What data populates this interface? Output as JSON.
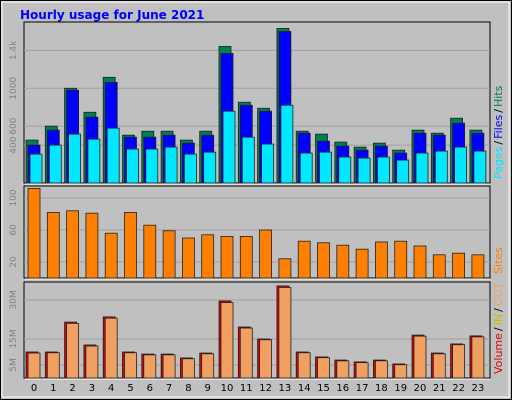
{
  "title": "Hourly usage for June 2021",
  "chart_data": [
    {
      "type": "bar",
      "ylim": [
        0,
        1700
      ],
      "yticks": [
        400,
        600,
        1000,
        {
          "value": 1400,
          "label": "1.4k"
        }
      ],
      "grid": true,
      "legend_separator": "/",
      "series": [
        {
          "name": "Pages",
          "color": "#00e8ff",
          "values": [
            305,
            400,
            516,
            463,
            579,
            358,
            358,
            379,
            305,
            326,
            758,
            484,
            411,
            821,
            316,
            326,
            274,
            263,
            274,
            242,
            316,
            337,
            379,
            337
          ]
        },
        {
          "name": "Files",
          "color": "#0000ff",
          "values": [
            400,
            558,
            979,
            695,
            1063,
            484,
            484,
            505,
            421,
            505,
            1368,
            821,
            758,
            1600,
            526,
            442,
            389,
            347,
            389,
            316,
            526,
            505,
            632,
            526
          ]
        },
        {
          "name": "Hits",
          "color": "#008050",
          "values": [
            453,
            600,
            1000,
            747,
            1116,
            505,
            547,
            547,
            453,
            547,
            1442,
            853,
            789,
            1632,
            547,
            516,
            432,
            379,
            421,
            347,
            558,
            526,
            684,
            558
          ]
        }
      ]
    },
    {
      "type": "bar",
      "ylim": [
        0,
        115
      ],
      "yticks": [
        20,
        60,
        100
      ],
      "grid": true,
      "legend_separator": "/",
      "series": [
        {
          "name": "Sites",
          "color": "#ff8000",
          "values": [
            112,
            82,
            84,
            81,
            56,
            82,
            66,
            59,
            50,
            54,
            52,
            52,
            60,
            24,
            46,
            44,
            41,
            36,
            45,
            46,
            40,
            29,
            31,
            29
          ]
        }
      ]
    },
    {
      "type": "bar",
      "ylim": [
        0,
        36.9
      ],
      "yticks": [
        {
          "value": 5,
          "label": "5M"
        },
        {
          "value": 15,
          "label": "15M"
        },
        {
          "value": 30,
          "label": "30M"
        }
      ],
      "grid": true,
      "legend_separator": "/",
      "categories": [
        "0",
        "1",
        "2",
        "3",
        "4",
        "5",
        "6",
        "7",
        "8",
        "9",
        "10",
        "11",
        "12",
        "13",
        "14",
        "15",
        "16",
        "17",
        "18",
        "19",
        "20",
        "21",
        "22",
        "23"
      ],
      "series": [
        {
          "name": "Volume",
          "color": "#e00000",
          "values": [
            10,
            10,
            21.5,
            12.7,
            23.5,
            10,
            9.2,
            9.2,
            7.7,
            9.6,
            29.6,
            19.6,
            15,
            35.4,
            10,
            8.1,
            6.9,
            6.2,
            6.9,
            5.4,
            16.5,
            9.6,
            13.1,
            16.2
          ]
        },
        {
          "name": "IN",
          "color": "#c8c000",
          "values": [
            0,
            0,
            0,
            0,
            0,
            0,
            0,
            0,
            0,
            0,
            0,
            0,
            0,
            0,
            0,
            0,
            0,
            0,
            0,
            0,
            0,
            0,
            0,
            0
          ]
        },
        {
          "name": "OUT",
          "color": "#f0a060",
          "values": [
            9.6,
            9.7,
            21.0,
            12.3,
            23.0,
            9.7,
            8.9,
            8.9,
            7.4,
            9.3,
            29.0,
            19.2,
            14.7,
            34.8,
            9.7,
            7.8,
            6.6,
            5.9,
            6.6,
            5.1,
            16.1,
            9.3,
            12.8,
            15.8
          ]
        }
      ]
    }
  ]
}
